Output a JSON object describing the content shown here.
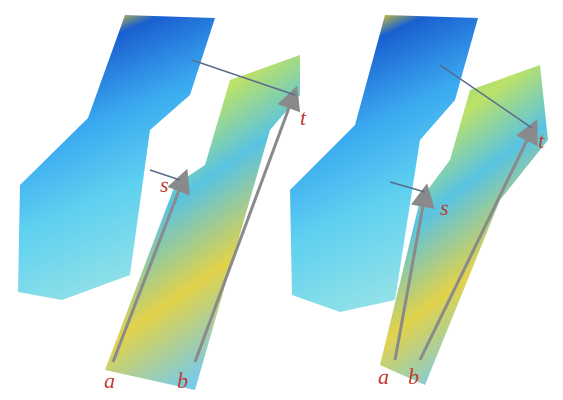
{
  "panels": [
    {
      "labels": [
        "a",
        "b",
        "s",
        "t"
      ]
    },
    {
      "labels": [
        "a",
        "b",
        "s",
        "t"
      ]
    }
  ]
}
